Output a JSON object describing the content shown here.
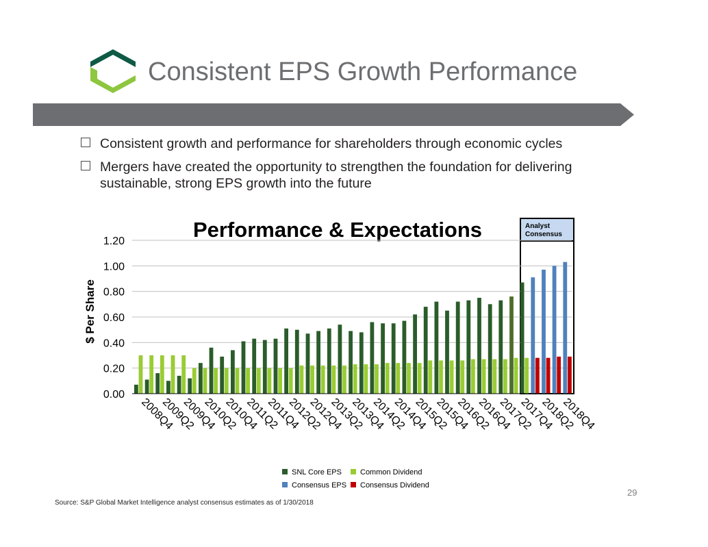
{
  "slide": {
    "title": "Consistent EPS Growth Performance",
    "bullets": [
      "Consistent growth and performance for shareholders through economic cycles",
      "Mergers have created the opportunity to strengthen the foundation for delivering sustainable, strong EPS growth into the future"
    ],
    "page_number": "29",
    "source": "Source: S&P Global Market Intelligence analyst consensus estimates as of 1/30/2018"
  },
  "colors": {
    "logo_dark": "#0f5a45",
    "logo_light": "#8dc63f",
    "banner": "#6d6e71",
    "snl_core_eps": "#2b5c2b",
    "common_dividend": "#99cc33",
    "consensus_eps": "#4f81bd",
    "consensus_dividend": "#c00000",
    "analyst_header": "#c6d9f1"
  },
  "chart_data": {
    "type": "bar",
    "title": "Performance & Expectations",
    "ylabel": "$ Per Share",
    "ylim": [
      0,
      1.2
    ],
    "yticks": [
      "0.00",
      "0.20",
      "0.40",
      "0.60",
      "0.80",
      "1.00",
      "1.20"
    ],
    "tick_labels": [
      "2008Q4",
      "2009Q2",
      "2009Q4",
      "2010Q2",
      "2010Q4",
      "2011Q2",
      "2011Q4",
      "2012Q2",
      "2012Q4",
      "2013Q2",
      "2013Q4",
      "2014Q2",
      "2014Q4",
      "2015Q2",
      "2015Q4",
      "2016Q2",
      "2016Q4",
      "2017Q2",
      "2017Q4",
      "2018Q2",
      "2018Q4"
    ],
    "analyst_box_label": "Analyst Consensus",
    "series": [
      {
        "name": "SNL Core EPS",
        "color": "#2b5c2b",
        "values": [
          0.07,
          0.11,
          0.16,
          0.1,
          0.14,
          0.12,
          0.24,
          0.36,
          0.29,
          0.34,
          0.41,
          0.43,
          0.42,
          0.43,
          0.51,
          0.5,
          0.47,
          0.49,
          0.51,
          0.54,
          0.49,
          0.48,
          0.56,
          0.55,
          0.55,
          0.57,
          0.62,
          0.68,
          0.72,
          0.65,
          0.72,
          0.73,
          0.75,
          0.7,
          0.73,
          0.76,
          0.87,
          null,
          null,
          null,
          null
        ]
      },
      {
        "name": "Common Dividend",
        "color": "#99cc33",
        "values": [
          0.3,
          0.3,
          0.3,
          0.3,
          0.3,
          0.2,
          0.2,
          0.2,
          0.2,
          0.2,
          0.2,
          0.2,
          0.2,
          0.2,
          0.2,
          0.22,
          0.22,
          0.22,
          0.22,
          0.22,
          0.23,
          0.23,
          0.23,
          0.24,
          0.24,
          0.24,
          0.24,
          0.26,
          0.26,
          0.26,
          0.26,
          0.27,
          0.27,
          0.27,
          0.27,
          0.28,
          0.28,
          null,
          null,
          null,
          null
        ]
      },
      {
        "name": "Consensus EPS",
        "color": "#4f81bd",
        "values": [
          null,
          null,
          null,
          null,
          null,
          null,
          null,
          null,
          null,
          null,
          null,
          null,
          null,
          null,
          null,
          null,
          null,
          null,
          null,
          null,
          null,
          null,
          null,
          null,
          null,
          null,
          null,
          null,
          null,
          null,
          null,
          null,
          null,
          null,
          null,
          null,
          null,
          0.91,
          0.97,
          1.0,
          1.03
        ]
      },
      {
        "name": "Consensus Dividend",
        "color": "#c00000",
        "values": [
          null,
          null,
          null,
          null,
          null,
          null,
          null,
          null,
          null,
          null,
          null,
          null,
          null,
          null,
          null,
          null,
          null,
          null,
          null,
          null,
          null,
          null,
          null,
          null,
          null,
          null,
          null,
          null,
          null,
          null,
          null,
          null,
          null,
          null,
          null,
          null,
          null,
          0.28,
          0.28,
          0.29,
          0.29
        ]
      }
    ],
    "legend": [
      "SNL Core EPS",
      "Common Dividend",
      "Consensus EPS",
      "Consensus Dividend"
    ],
    "legend_position": "bottom"
  }
}
